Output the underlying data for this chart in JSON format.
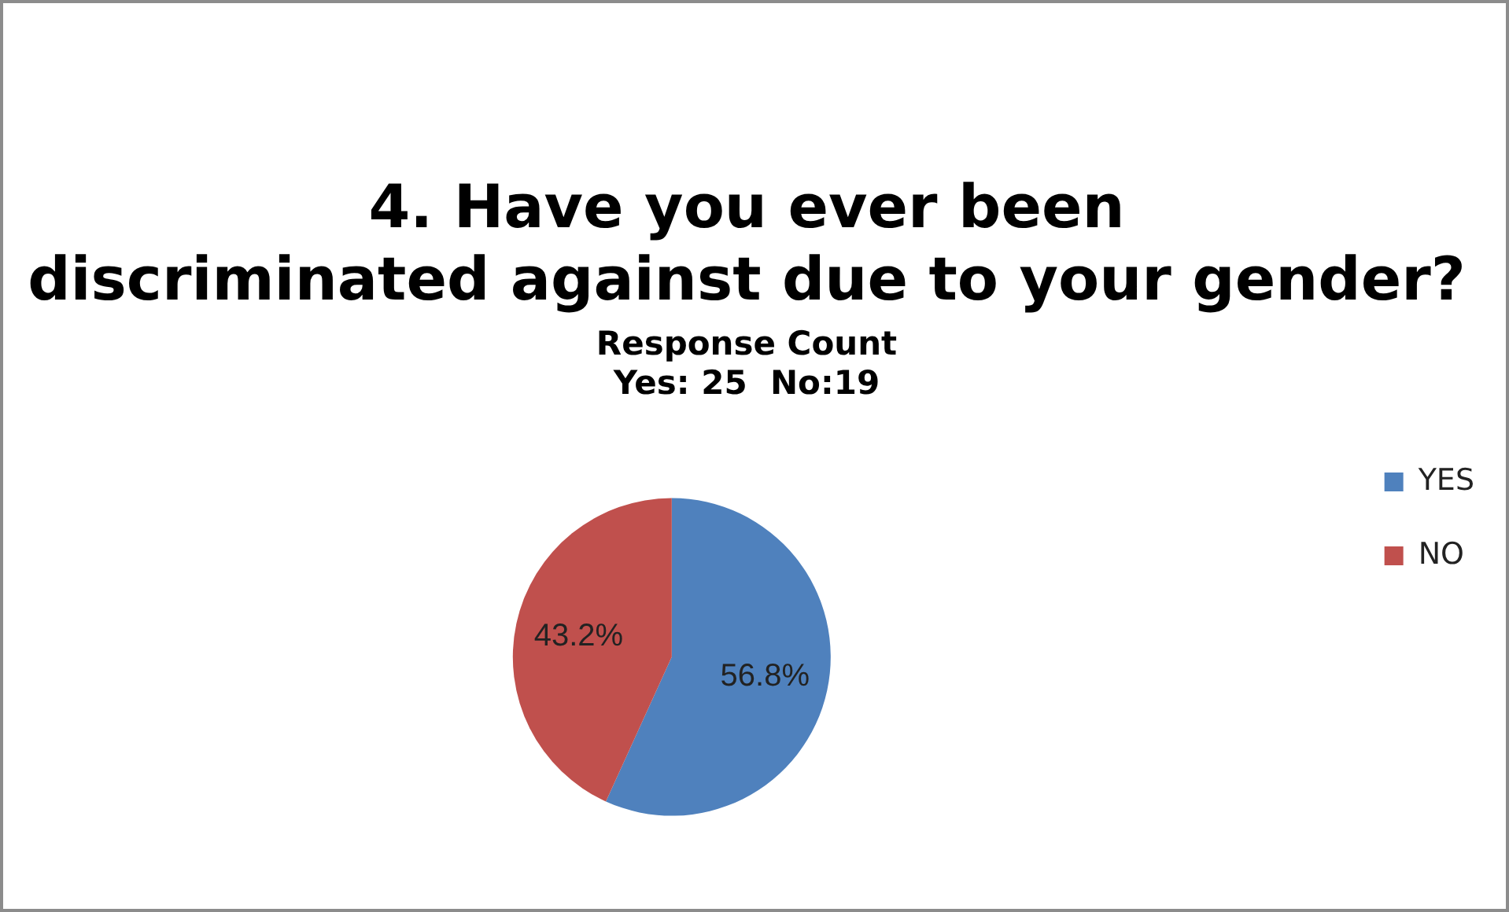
{
  "chart_data": {
    "type": "pie",
    "title": "4. Have you ever been discriminated against due to your gender?",
    "subtitle": "Response Count\nYes: 25  No:19",
    "categories": [
      "YES",
      "NO"
    ],
    "values": [
      56.8,
      43.2
    ],
    "colors": [
      "#4f81bd",
      "#c0504d"
    ],
    "value_labels": [
      "56.8%",
      "43.2%"
    ],
    "legend": "right"
  }
}
